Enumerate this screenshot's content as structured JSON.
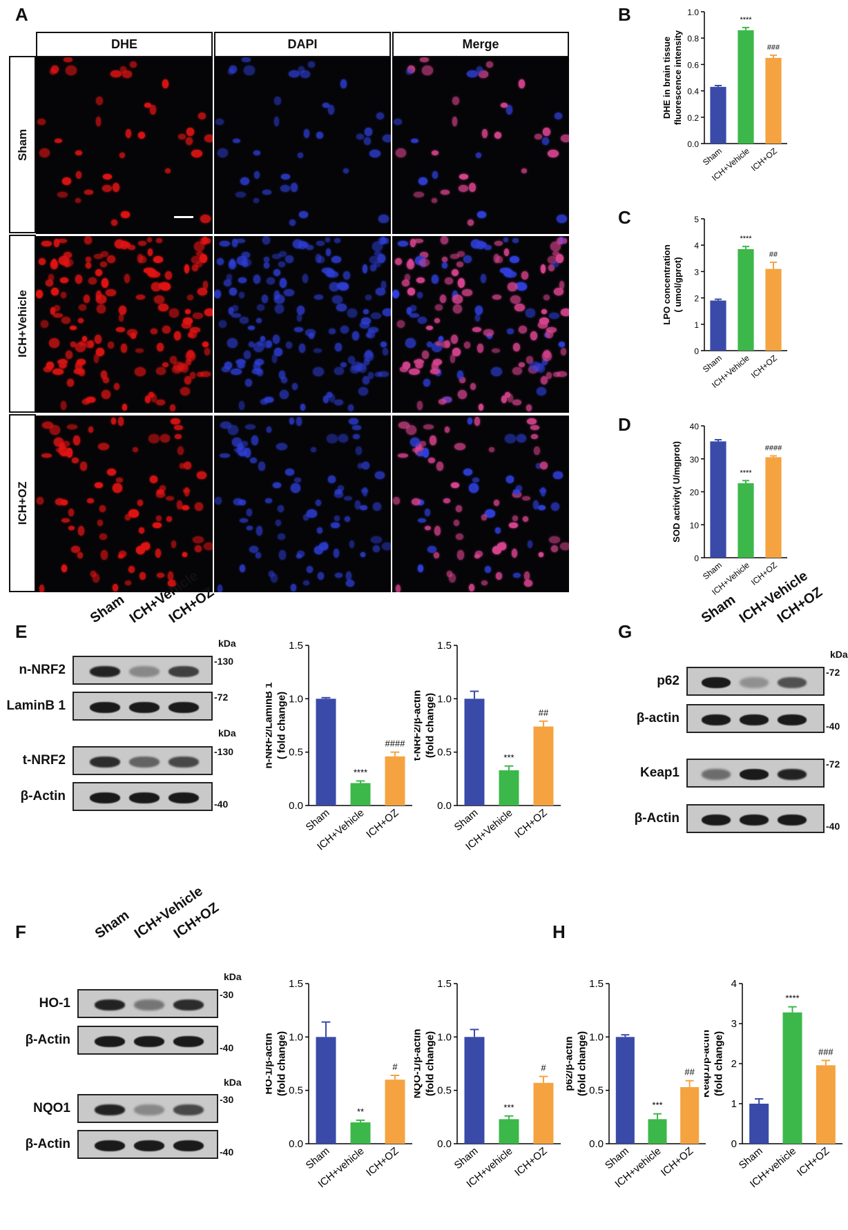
{
  "panel_letters": {
    "A": "A",
    "B": "B",
    "C": "C",
    "D": "D",
    "E": "E",
    "F": "F",
    "G": "G",
    "H": "H"
  },
  "microscopy": {
    "columns": [
      "DHE",
      "DAPI",
      "Merge"
    ],
    "rows": [
      "Sham",
      "ICH+Vehicle",
      "ICH+OZ"
    ],
    "colors": {
      "dhe": "#e01414",
      "dapi": "#2f3fd8",
      "merge": "#d8448f"
    }
  },
  "blots": {
    "E": {
      "columns": [
        "Sham",
        "ICH+Vehicle",
        "ICH+OZ"
      ],
      "kda": "kDa",
      "kda2": "kDa",
      "rows": [
        {
          "label": "n-NRF2",
          "mw": "130",
          "intensity": [
            0.9,
            0.35,
            0.75
          ]
        },
        {
          "label": "LaminB 1",
          "mw": "72",
          "intensity": [
            0.95,
            0.95,
            0.95
          ]
        },
        {
          "label": "t-NRF2",
          "mw": "130",
          "intensity": [
            0.85,
            0.55,
            0.7
          ]
        },
        {
          "label": "β-Actin",
          "mw": "40",
          "intensity": [
            0.95,
            0.95,
            0.95
          ]
        }
      ]
    },
    "F": {
      "columns": [
        "Sham",
        "ICH+Vehicle",
        "ICH+OZ"
      ],
      "kda": "kDa",
      "kda2": "kDa",
      "rows": [
        {
          "label": "HO-1",
          "mw": "30",
          "intensity": [
            0.9,
            0.45,
            0.85
          ]
        },
        {
          "label": "β-Actin",
          "mw": "40",
          "intensity": [
            0.95,
            0.95,
            0.95
          ]
        },
        {
          "label": "NQO1",
          "mw": "30",
          "intensity": [
            0.9,
            0.35,
            0.7
          ]
        },
        {
          "label": "β-Actin",
          "mw": "40",
          "intensity": [
            0.95,
            0.95,
            0.95
          ]
        }
      ]
    },
    "G": {
      "columns": [
        "Sham",
        "ICH+Vehicle",
        "ICH+OZ"
      ],
      "kda": "kDa",
      "rows": [
        {
          "label": "p62",
          "mw": "72",
          "intensity": [
            0.95,
            0.3,
            0.65
          ]
        },
        {
          "label": "β-actin",
          "mw": "40",
          "intensity": [
            0.95,
            0.95,
            0.95
          ]
        },
        {
          "label": "Keap1",
          "mw": "72",
          "intensity": [
            0.5,
            0.95,
            0.9
          ]
        },
        {
          "label": "β-Actin",
          "mw": "40",
          "intensity": [
            0.95,
            0.95,
            0.95
          ]
        }
      ]
    }
  },
  "bar_colors": [
    "#3a4aa8",
    "#3cb84a",
    "#f5a340"
  ],
  "chart_data": [
    {
      "id": "B",
      "type": "bar",
      "categories": [
        "Sham",
        "ICH+Vehicle",
        "ICH+OZ"
      ],
      "values": [
        0.43,
        0.86,
        0.65
      ],
      "errors": [
        0.01,
        0.02,
        0.02
      ],
      "annotations": [
        "",
        "****",
        "###"
      ],
      "ylabel": "DHE in brain tissue\nfluorescence intensity",
      "ylim": [
        0,
        1.0
      ],
      "yticks": [
        "0.0",
        "0.2",
        "0.4",
        "0.6",
        "0.8",
        "1.0"
      ]
    },
    {
      "id": "C",
      "type": "bar",
      "categories": [
        "Sham",
        "ICH+Vehicle",
        "ICH+OZ"
      ],
      "values": [
        1.9,
        3.85,
        3.1
      ],
      "errors": [
        0.05,
        0.1,
        0.25
      ],
      "annotations": [
        "",
        "****",
        "##"
      ],
      "ylabel": "LPO concentration\n( umol/gprot)",
      "ylim": [
        0,
        5
      ],
      "yticks": [
        "0",
        "1",
        "2",
        "3",
        "4",
        "5"
      ]
    },
    {
      "id": "D",
      "type": "bar",
      "categories": [
        "Sham",
        "ICH+Vehicle",
        "ICH+OZ"
      ],
      "values": [
        35.3,
        22.6,
        30.5
      ],
      "errors": [
        0.5,
        0.8,
        0.4
      ],
      "annotations": [
        "",
        "****",
        "####"
      ],
      "ylabel": "SOD activity( U/mgprot)",
      "ylim": [
        0,
        40
      ],
      "yticks": [
        "0",
        "10",
        "20",
        "30",
        "40"
      ]
    },
    {
      "id": "E1",
      "type": "bar",
      "categories": [
        "Sham",
        "ICH+Vehicle",
        "ICH+OZ"
      ],
      "values": [
        1.0,
        0.21,
        0.46
      ],
      "errors": [
        0.01,
        0.02,
        0.04
      ],
      "annotations": [
        "",
        "****",
        "####"
      ],
      "ylabel": "n-NRF2/LaminB 1\n( fold change)",
      "ylim": [
        0,
        1.5
      ],
      "yticks": [
        "0.0",
        "0.5",
        "1.0",
        "1.5"
      ]
    },
    {
      "id": "E2",
      "type": "bar",
      "categories": [
        "Sham",
        "ICH+Vehicle",
        "ICH+OZ"
      ],
      "values": [
        1.0,
        0.33,
        0.74
      ],
      "errors": [
        0.07,
        0.04,
        0.05
      ],
      "annotations": [
        "",
        "***",
        "##"
      ],
      "ylabel": "t-NRF2/β-actin\n(fold change)",
      "ylim": [
        0,
        1.5
      ],
      "yticks": [
        "0.0",
        "0.5",
        "1.0",
        "1.5"
      ]
    },
    {
      "id": "F1",
      "type": "bar",
      "categories": [
        "Sham",
        "ICH+vehicle",
        "ICH+OZ"
      ],
      "values": [
        1.0,
        0.2,
        0.6
      ],
      "errors": [
        0.14,
        0.02,
        0.04
      ],
      "annotations": [
        "",
        "**",
        "#"
      ],
      "ylabel": "HO-1/β-actin\n(fold change)",
      "ylim": [
        0,
        1.5
      ],
      "yticks": [
        "0.0",
        "0.5",
        "1.0",
        "1.5"
      ]
    },
    {
      "id": "F2",
      "type": "bar",
      "categories": [
        "Sham",
        "ICH+vehicle",
        "ICH+OZ"
      ],
      "values": [
        1.0,
        0.23,
        0.57
      ],
      "errors": [
        0.07,
        0.03,
        0.06
      ],
      "annotations": [
        "",
        "***",
        "#"
      ],
      "ylabel": "NQO-1/β-actin\n(fold change)",
      "ylim": [
        0,
        1.5
      ],
      "yticks": [
        "0.0",
        "0.5",
        "1.0",
        "1.5"
      ]
    },
    {
      "id": "H1",
      "type": "bar",
      "categories": [
        "Sham",
        "ICH+vehicle",
        "ICH+OZ"
      ],
      "values": [
        1.0,
        0.23,
        0.53
      ],
      "errors": [
        0.02,
        0.05,
        0.06
      ],
      "annotations": [
        "",
        "***",
        "##"
      ],
      "ylabel": "p62/β-actin\n(fold change)",
      "ylim": [
        0,
        1.5
      ],
      "yticks": [
        "0.0",
        "0.5",
        "1.0",
        "1.5"
      ]
    },
    {
      "id": "H2",
      "type": "bar",
      "categories": [
        "Sham",
        "ICH+vehicle",
        "ICH+OZ"
      ],
      "values": [
        1.0,
        3.28,
        1.96
      ],
      "errors": [
        0.12,
        0.14,
        0.12
      ],
      "annotations": [
        "",
        "****",
        "###"
      ],
      "ylabel": "Keap1/β-actin\n(fold change)",
      "ylim": [
        0,
        4
      ],
      "yticks": [
        "0",
        "1",
        "2",
        "3",
        "4"
      ]
    }
  ]
}
